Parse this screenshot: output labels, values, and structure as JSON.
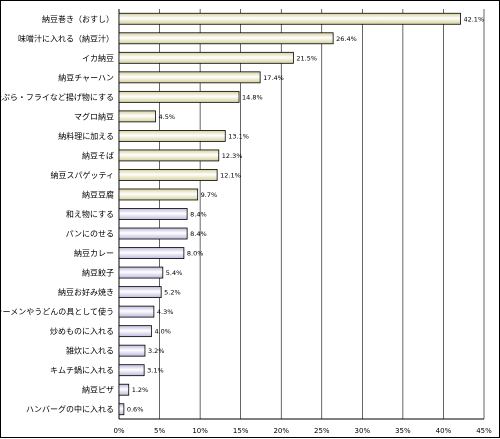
{
  "chart_data": {
    "type": "bar",
    "orientation": "horizontal",
    "categories": [
      "納豆巻き（おすし）",
      "味噌汁に入れる（納豆汁）",
      "イカ納豆",
      "納豆チャーハン",
      "天ぷら・フライなど揚げ物にする",
      "マグロ納豆",
      "納料理に加える",
      "納豆そば",
      "納豆スパゲッティ",
      "納豆豆腐",
      "和え物にする",
      "パンにのせる",
      "納豆カレー",
      "納豆餃子",
      "納豆お好み焼き",
      "ラーメンやうどんの具として使う",
      "炒めものに入れる",
      "雑炊に入れる",
      "キムチ鍋に入れる",
      "納豆ピザ",
      "ハンバーグの中に入れる"
    ],
    "values": [
      42.1,
      26.4,
      21.5,
      17.4,
      14.8,
      4.5,
      13.1,
      12.3,
      12.1,
      9.7,
      8.4,
      8.4,
      8.0,
      5.4,
      5.2,
      4.3,
      4.0,
      3.2,
      3.1,
      1.2,
      0.6
    ],
    "value_labels": [
      "42.1%",
      "26.4%",
      "21.5%",
      "17.4%",
      "14.8%",
      "4.5%",
      "13.1%",
      "12.3%",
      "12.1%",
      "9.7%",
      "8.4%",
      "8.4%",
      "8.0%",
      "5.4%",
      "5.2%",
      "4.3%",
      "4.0%",
      "3.2%",
      "3.1%",
      "1.2%",
      "0.6%"
    ],
    "xlim": [
      0,
      45
    ],
    "xticks": [
      0,
      5,
      10,
      15,
      20,
      25,
      30,
      35,
      40,
      45
    ],
    "xtick_labels": [
      "0%",
      "5%",
      "10%",
      "15%",
      "20%",
      "25%",
      "30%",
      "35%",
      "40%",
      "45%"
    ],
    "title": "",
    "xlabel": "",
    "ylabel": "",
    "grid": "vertical",
    "legend": "none",
    "colors": {
      "olive_group": "#d4d09a",
      "purple_group": "#bdb9de",
      "gradient_light": "#ffffff",
      "grid": "#000000"
    },
    "olive_count": 10
  }
}
